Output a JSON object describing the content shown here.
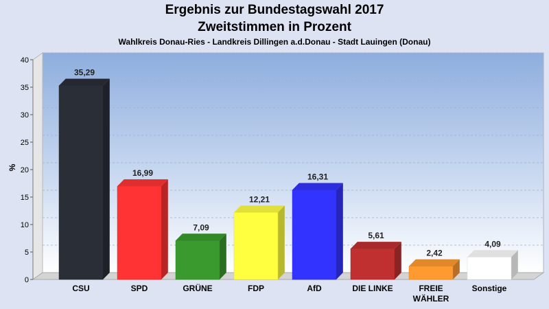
{
  "title": "Ergebnis zur Bundestagswahl 2017",
  "subtitle": "Zweitstimmen in Prozent",
  "subsubtitle": "Wahlkreis Donau-Ries - Landkreis Dillingen a.d.Donau - Stadt Lauingen (Donau)",
  "chart_data": {
    "type": "bar",
    "title": "Ergebnis zur Bundestagswahl 2017",
    "subtitle": "Zweitstimmen in Prozent",
    "ylabel": "%",
    "xlabel": "",
    "ylim": [
      0,
      40
    ],
    "yticks": [
      0,
      5,
      10,
      15,
      20,
      25,
      30,
      35,
      40
    ],
    "grid": true,
    "categories": [
      "CSU",
      "SPD",
      "GRÜNE",
      "FDP",
      "AfD",
      "DIE LINKE",
      "FREIE WÄHLER",
      "Sonstige"
    ],
    "category_lines": [
      [
        "CSU"
      ],
      [
        "SPD"
      ],
      [
        "GRÜNE"
      ],
      [
        "FDP"
      ],
      [
        "AfD"
      ],
      [
        "DIE LINKE"
      ],
      [
        "FREIE",
        "WÄHLER"
      ],
      [
        "Sonstige"
      ]
    ],
    "values": [
      35.29,
      16.99,
      7.09,
      12.21,
      16.31,
      5.61,
      2.42,
      4.09
    ],
    "value_labels": [
      "35,29",
      "16,99",
      "7,09",
      "12,21",
      "16,31",
      "5,61",
      "2,42",
      "4,09"
    ],
    "colors": [
      "#2a2e36",
      "#ff3333",
      "#3a9a2e",
      "#ffff40",
      "#3333ff",
      "#c03030",
      "#ff9a30",
      "#ffffff"
    ]
  }
}
